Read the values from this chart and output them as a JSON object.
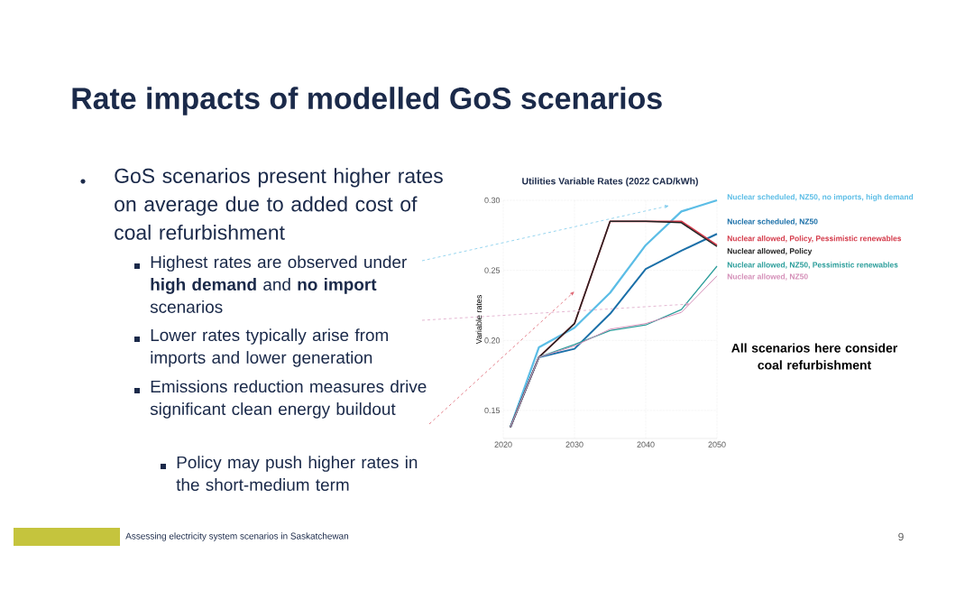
{
  "chart_data": {
    "type": "line",
    "title": "Utilities Variable Rates (2022 CAD/kWh)",
    "ylabel": "Variable rates",
    "x": [
      2021,
      2025,
      2030,
      2035,
      2040,
      2045,
      2050
    ],
    "xlim": [
      2020,
      2050
    ],
    "xticks": [
      2020,
      2030,
      2040,
      2050
    ],
    "ylim": [
      0.13,
      0.3
    ],
    "yticks": [
      0.15,
      {
        "value": 0.2,
        "label": "0.20"
      },
      0.25,
      {
        "value": 0.3,
        "label": "0.30"
      }
    ],
    "grid": true,
    "legend": "right",
    "marker": "none",
    "line_style": "solid",
    "series": [
      {
        "name": "Nuclear scheduled, NZ50, no imports, high demand",
        "color": "#5bbde6",
        "values": [
          0.138,
          0.195,
          0.209,
          0.234,
          0.268,
          0.292,
          0.3
        ]
      },
      {
        "name": "Nuclear scheduled, NZ50",
        "color": "#1a6fa8",
        "values": [
          0.138,
          0.188,
          0.194,
          0.219,
          0.251,
          0.264,
          0.276
        ]
      },
      {
        "name": "Nuclear allowed, Policy, Pessimistic renewables",
        "color": "#d43a4a",
        "values": [
          0.138,
          0.188,
          0.212,
          0.285,
          0.285,
          0.285,
          0.268
        ]
      },
      {
        "name": "Nuclear allowed, Policy",
        "color": "#222222",
        "values": [
          0.138,
          0.188,
          0.212,
          0.285,
          0.285,
          0.284,
          0.267
        ]
      },
      {
        "name": "Nuclear allowed, NZ50, Pessimistic renewables",
        "color": "#2a9d9a",
        "values": [
          0.138,
          0.188,
          0.197,
          0.207,
          0.211,
          0.222,
          0.253
        ]
      },
      {
        "name": "Nuclear allowed, NZ50",
        "color": "#d48fb8",
        "values": [
          0.138,
          0.188,
          0.196,
          0.208,
          0.212,
          0.22,
          0.246
        ]
      }
    ],
    "annotations": [
      "Rate impacts of modelled GoS scenarios",
      "GoS scenarios present higher rates on average due to added cost of coal refurbishment",
      "Highest rates are observed under **high demand** and **no import** scenarios",
      "Lower rates typically arise from imports and lower generation",
      "Emissions reduction measures drive significant clean energy buildout",
      "Policy may push higher rates in the short-medium term",
      "All scenarios here consider coal refurbishment",
      "Assessing electricity system scenarios in Saskatchewan",
      "9"
    ]
  }
}
